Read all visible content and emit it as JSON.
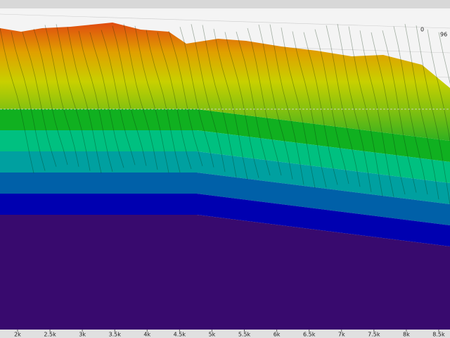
{
  "chart_data": {
    "type": "waterfall",
    "xlim": [
      1729,
      8674
    ],
    "xticks": [
      {
        "value": 2000,
        "label": "2k"
      },
      {
        "value": 2500,
        "label": "2.5k"
      },
      {
        "value": 3000,
        "label": "3k"
      },
      {
        "value": 3500,
        "label": "3.5k"
      },
      {
        "value": 4000,
        "label": "4k"
      },
      {
        "value": 4500,
        "label": "4.5k"
      },
      {
        "value": 5000,
        "label": "5k"
      },
      {
        "value": 5500,
        "label": "5.5k"
      },
      {
        "value": 6000,
        "label": "6k"
      },
      {
        "value": 6500,
        "label": "6.5k"
      },
      {
        "value": 7000,
        "label": "7k"
      },
      {
        "value": 7500,
        "label": "7.5k"
      },
      {
        "value": 8000,
        "label": "8k"
      },
      {
        "value": 8500,
        "label": "8.5k"
      }
    ],
    "zticks": [
      0,
      96
    ]
  }
}
